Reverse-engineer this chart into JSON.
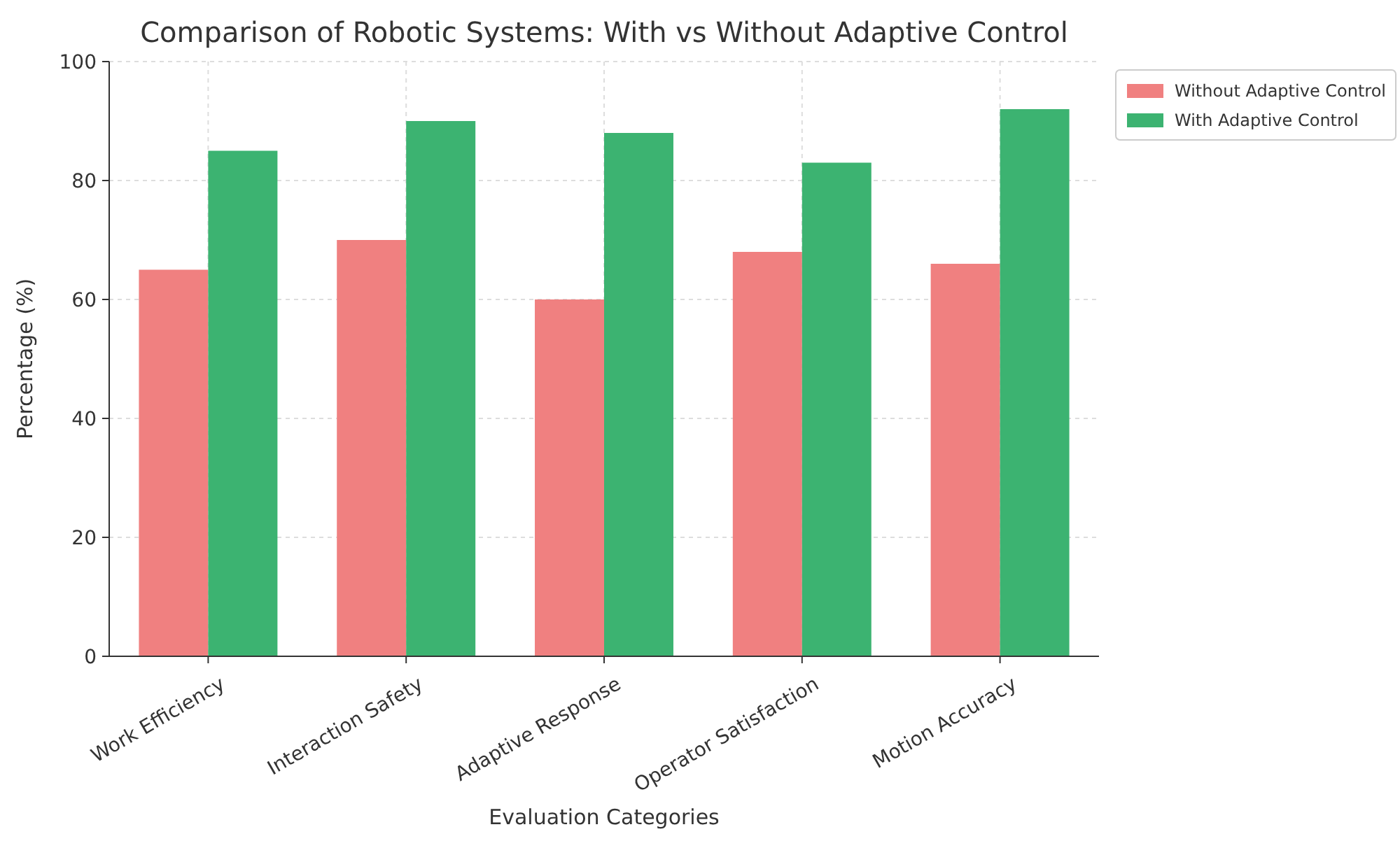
{
  "chart_data": {
    "type": "bar",
    "title": "Comparison of Robotic Systems: With vs Without Adaptive Control",
    "xlabel": "Evaluation Categories",
    "ylabel": "Percentage (%)",
    "categories": [
      "Work Efficiency",
      "Interaction Safety",
      "Adaptive Response",
      "Operator Satisfaction",
      "Motion Accuracy"
    ],
    "series": [
      {
        "name": "Without Adaptive Control",
        "color": "#f08080",
        "values": [
          65,
          70,
          60,
          68,
          66
        ]
      },
      {
        "name": "With Adaptive Control",
        "color": "#3cb371",
        "values": [
          85,
          90,
          88,
          83,
          92
        ]
      }
    ],
    "ylim": [
      0,
      100
    ],
    "yticks": [
      0,
      20,
      40,
      60,
      80,
      100
    ],
    "grid": true,
    "legend": "right"
  }
}
